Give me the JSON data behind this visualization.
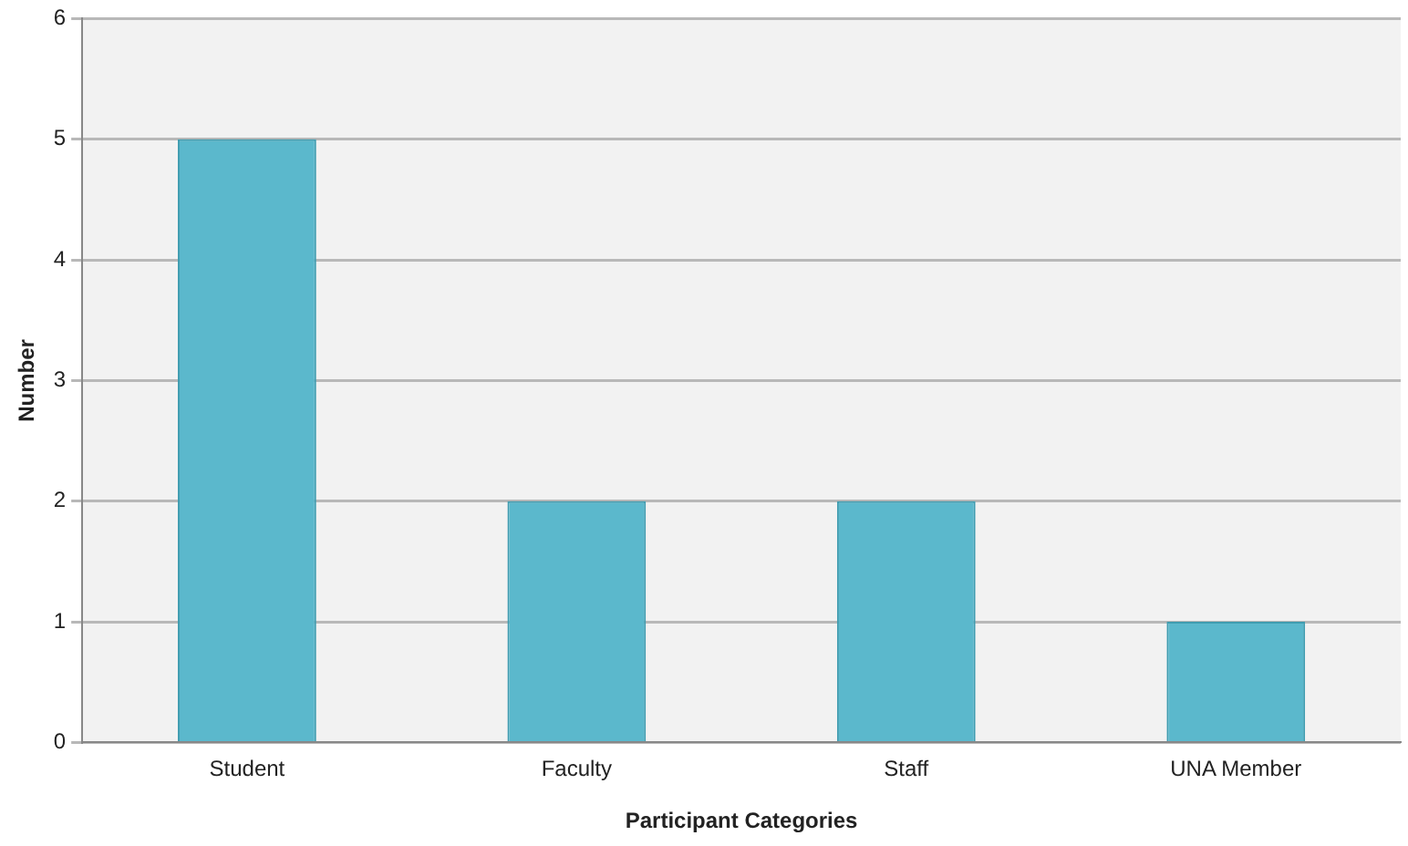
{
  "chart_data": {
    "type": "bar",
    "xlabel": "Participant Categories",
    "ylabel": "Number",
    "categories": [
      "Student",
      "Faculty",
      "Staff",
      "UNA Member"
    ],
    "values": [
      5,
      2,
      2,
      1
    ],
    "color": "#5bb8cc",
    "ylim": [
      0,
      6
    ],
    "yticks": [
      0,
      1,
      2,
      3,
      4,
      5,
      6
    ],
    "grid": "y",
    "legend": false
  }
}
